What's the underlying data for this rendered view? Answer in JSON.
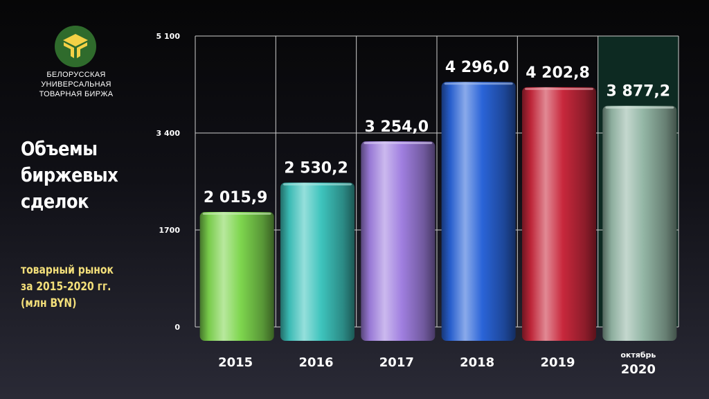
{
  "org": {
    "name_lines": [
      "БЕЛОРУССКАЯ",
      "УНИВЕРСАЛЬНАЯ",
      "ТОВАРНАЯ БИРЖА"
    ],
    "logo_icon": "butb-logo-icon",
    "logo_bg": "#2f6b2c",
    "logo_fg": "#f4d146"
  },
  "heading": {
    "title_lines": [
      "Объемы",
      "биржевых",
      "сделок"
    ],
    "subtitle_lines": [
      "товарный рынок",
      "за 2015-2020 гг.",
      "(млн BYN)"
    ],
    "subtitle_color": "#f3df7a"
  },
  "chart_data": {
    "type": "bar",
    "title": "Объемы биржевых сделок",
    "ylabel": "млн BYN",
    "ylim": [
      0,
      5100
    ],
    "yticks": [
      0,
      1700,
      3400,
      5100
    ],
    "ytick_labels": [
      "0",
      "1700",
      "3 400",
      "5 100"
    ],
    "grid": true,
    "categories": [
      "2015",
      "2016",
      "2017",
      "2018",
      "2019",
      "2020"
    ],
    "category_sublabels": [
      "",
      "",
      "",
      "",
      "",
      "октябрь"
    ],
    "values": [
      2015.9,
      2530.2,
      3254.0,
      4296.0,
      4202.8,
      3877.2
    ],
    "value_labels": [
      "2 015,9",
      "2 530,2",
      "3 254,0",
      "4 296,0",
      "4 202,8",
      "3 877,2"
    ],
    "colors": [
      "#7ed64e",
      "#3ec4bd",
      "#a07fe0",
      "#2a64d8",
      "#c8283c",
      "#93b6a5"
    ]
  }
}
